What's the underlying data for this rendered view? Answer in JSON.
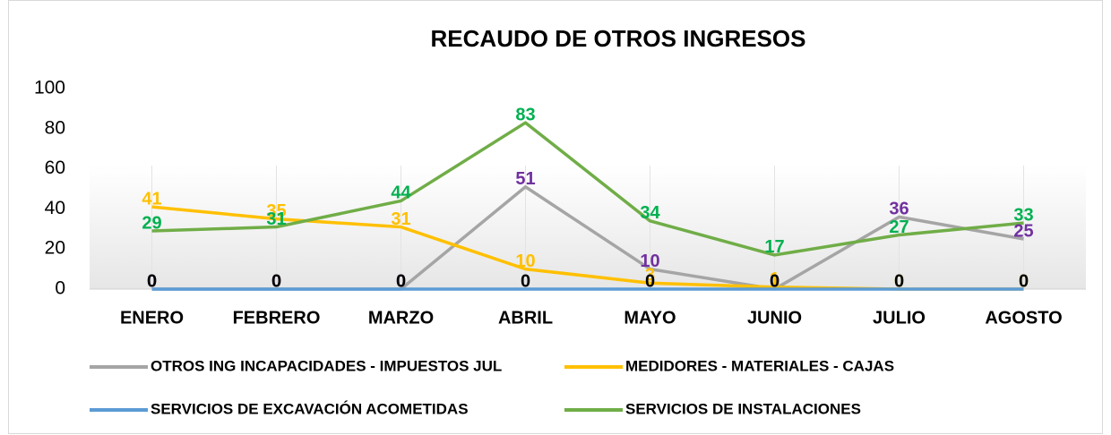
{
  "chart_data": {
    "type": "line",
    "title": "RECAUDO DE OTROS INGRESOS",
    "categories": [
      "ENERO",
      "FEBRERO",
      "MARZO",
      "ABRIL",
      "MAYO",
      "JUNIO",
      "JULIO",
      "AGOSTO"
    ],
    "series": [
      {
        "name": "OTROS ING INCAPACIDADES  - IMPUESTOS JUL",
        "color": "#a5a5a5",
        "label_color": "#7030a0",
        "values": [
          0,
          0,
          0,
          51,
          10,
          0,
          36,
          25
        ]
      },
      {
        "name": "MEDIDORES - MATERIALES - CAJAS",
        "color": "#ffc000",
        "label_color": "#ffc000",
        "values": [
          41,
          35,
          31,
          10,
          3,
          1,
          0,
          0
        ]
      },
      {
        "name": "SERVICIOS DE EXCAVACIÓN ACOMETIDAS",
        "color": "#5b9bd5",
        "label_color": "#000000",
        "values": [
          0,
          0,
          0,
          0,
          0,
          0,
          0,
          0
        ]
      },
      {
        "name": "SERVICIOS DE INSTALACIONES",
        "color": "#70ad47",
        "label_color": "#00b050",
        "values": [
          29,
          31,
          44,
          83,
          34,
          17,
          27,
          33
        ]
      }
    ],
    "ylim": [
      0,
      100
    ],
    "yticks": [
      0,
      20,
      40,
      60,
      80,
      100
    ],
    "legend": "bottom"
  }
}
